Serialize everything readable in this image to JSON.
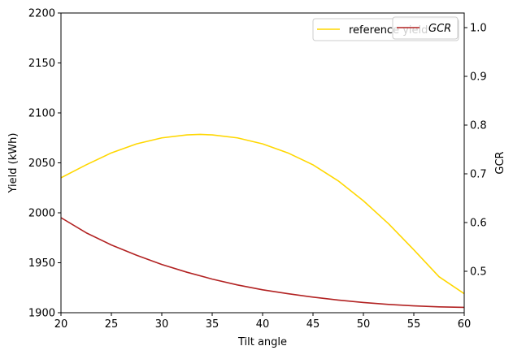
{
  "chart_data": {
    "type": "line",
    "xlabel": "Tilt angle",
    "ylabel": "Yield (kWh)",
    "y2label": "GCR",
    "xlim": [
      20,
      60
    ],
    "ylim": [
      1900,
      2200
    ],
    "y2lim": [
      0.415,
      1.03
    ],
    "xticks": [
      "20",
      "25",
      "30",
      "35",
      "40",
      "45",
      "50",
      "55",
      "60"
    ],
    "yticks": [
      "1900",
      "1950",
      "2000",
      "2050",
      "2100",
      "2150",
      "2200"
    ],
    "y2ticks": [
      "0.5",
      "0.6",
      "0.7",
      "0.8",
      "0.9",
      "1.0"
    ],
    "grid": false,
    "series": [
      {
        "name": "reference yield",
        "axis": "left",
        "color": "#FFD700",
        "x": [
          20,
          22.5,
          25,
          27.5,
          30,
          32.5,
          33.8,
          35,
          37.5,
          40,
          42.5,
          45,
          47.5,
          50,
          52.5,
          55,
          57.5,
          60
        ],
        "y": [
          2035,
          2048,
          2060,
          2069,
          2075,
          2078,
          2078.5,
          2078,
          2075,
          2069,
          2060,
          2048,
          2032,
          2012,
          1989,
          1963,
          1936,
          1919
        ]
      },
      {
        "name": "GCR",
        "axis": "right",
        "color": "#B22222",
        "x": [
          20,
          22.5,
          25,
          27.5,
          30,
          32.5,
          35,
          37.5,
          40,
          42.5,
          45,
          47.5,
          50,
          52.5,
          55,
          57.5,
          60
        ],
        "y": [
          0.61,
          0.579,
          0.554,
          0.533,
          0.514,
          0.498,
          0.484,
          0.472,
          0.462,
          0.454,
          0.447,
          0.441,
          0.436,
          0.432,
          0.429,
          0.427,
          0.426
        ]
      }
    ],
    "legends": [
      {
        "placement": "top-right",
        "entries": [
          0
        ]
      },
      {
        "placement": "top-right",
        "entries": [
          1
        ]
      }
    ]
  }
}
